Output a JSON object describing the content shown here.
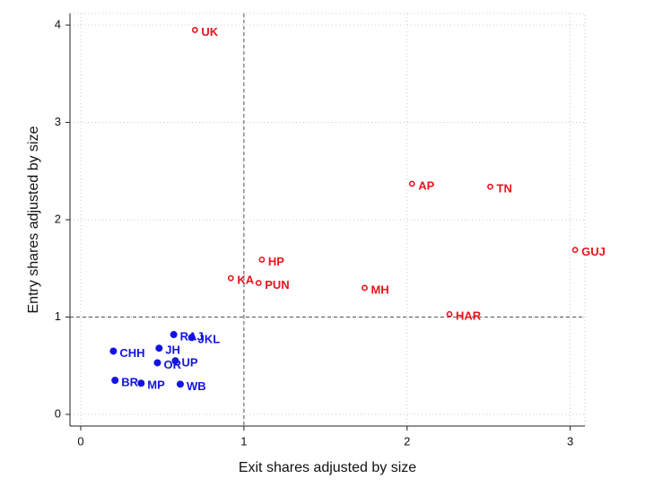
{
  "chart_data": {
    "type": "scatter",
    "x_label": "Exit shares adjusted by size",
    "y_label": "Entry shares adjusted by size",
    "xlim": [
      -0.066,
      3.09
    ],
    "ylim": [
      -0.12,
      4.12
    ],
    "xticks": [
      0,
      1,
      2,
      3
    ],
    "yticks": [
      0,
      1,
      2,
      3,
      4
    ],
    "grid": true,
    "reference_lines": {
      "x": 1,
      "y": 1
    },
    "series": [
      {
        "color": "#e8141c",
        "marker": "hollow",
        "labels": [
          "UK",
          "AP",
          "TN",
          "GUJ",
          "HP",
          "KA",
          "PUN",
          "MH",
          "HAR"
        ],
        "x": [
          0.7,
          2.03,
          2.51,
          3.03,
          1.11,
          0.92,
          1.09,
          1.74,
          2.26
        ],
        "values": [
          3.95,
          2.37,
          2.34,
          1.69,
          1.59,
          1.4,
          1.35,
          1.3,
          1.03
        ]
      },
      {
        "color": "#1414e0",
        "marker": "filled",
        "labels": [
          "RAJ",
          "JKL",
          "CHH",
          "JH",
          "OR",
          "UP",
          "BR",
          "MP",
          "WB"
        ],
        "x": [
          0.57,
          0.68,
          0.2,
          0.48,
          0.47,
          0.58,
          0.21,
          0.37,
          0.61
        ],
        "values": [
          0.82,
          0.79,
          0.65,
          0.68,
          0.53,
          0.55,
          0.35,
          0.32,
          0.31
        ]
      }
    ]
  }
}
